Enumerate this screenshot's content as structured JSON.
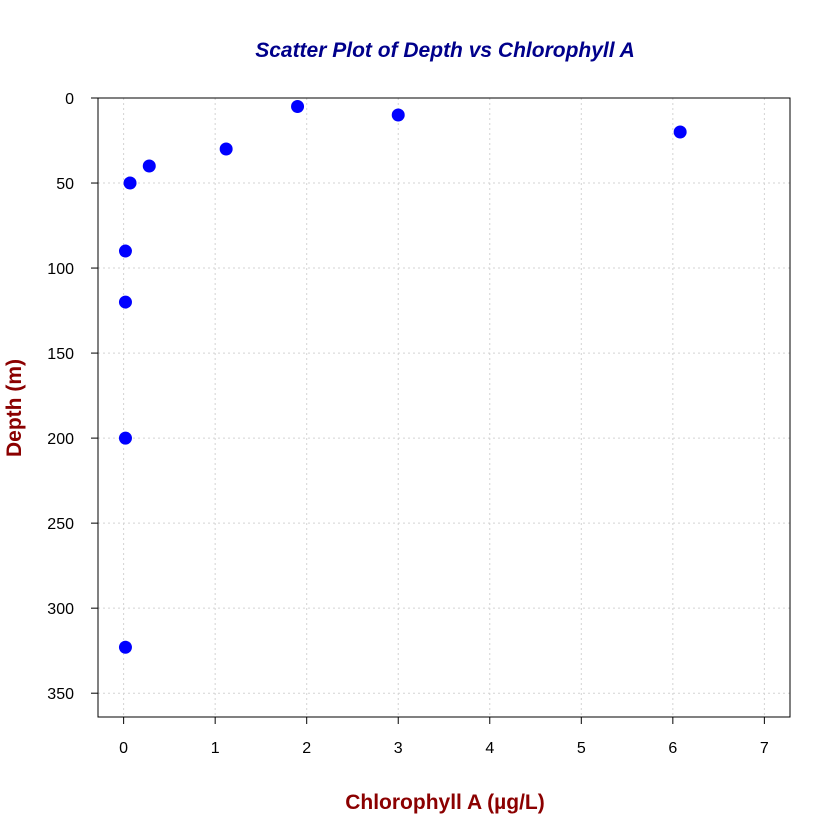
{
  "chart_data": {
    "type": "scatter",
    "title": "Scatter Plot of Depth vs Chlorophyll A",
    "xlabel": "Chlorophyll A (µg/L)",
    "ylabel": "Depth (m)",
    "xlim": [
      -0.28,
      7.28
    ],
    "ylim": [
      0,
      364
    ],
    "y_axis_reversed": true,
    "xticks": [
      0,
      1,
      2,
      3,
      4,
      5,
      6,
      7
    ],
    "yticks": [
      0,
      50,
      100,
      150,
      200,
      250,
      300,
      350
    ],
    "grid": true,
    "point_color": "#0000ff",
    "title_color": "#00008b",
    "axis_title_color": "#8b0000",
    "points": [
      {
        "x": 1.9,
        "y": 5
      },
      {
        "x": 3.0,
        "y": 10
      },
      {
        "x": 6.08,
        "y": 20
      },
      {
        "x": 1.12,
        "y": 30
      },
      {
        "x": 0.28,
        "y": 40
      },
      {
        "x": 0.07,
        "y": 50
      },
      {
        "x": 0.02,
        "y": 90
      },
      {
        "x": 0.02,
        "y": 120
      },
      {
        "x": 0.02,
        "y": 200
      },
      {
        "x": 0.02,
        "y": 323
      }
    ]
  }
}
